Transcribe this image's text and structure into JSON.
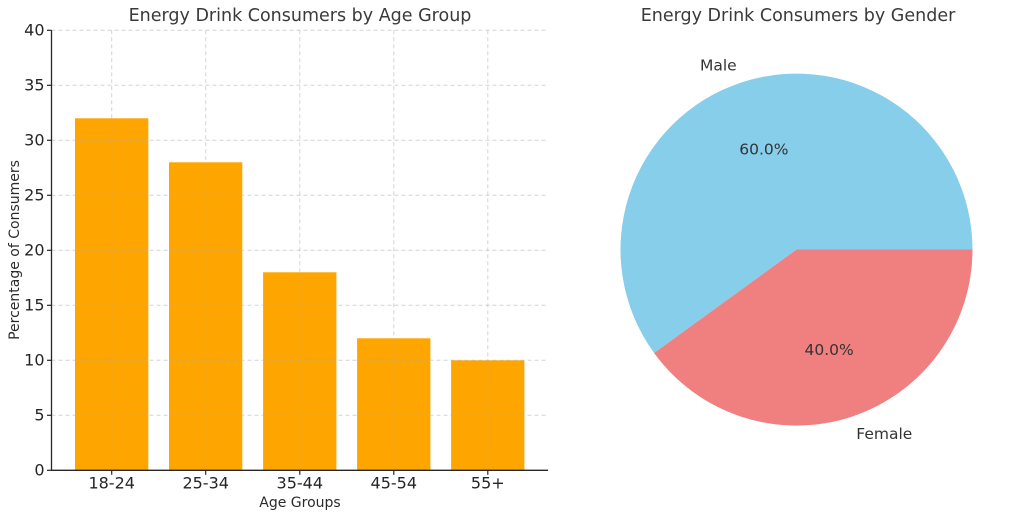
{
  "figure": {
    "background": "#ffffff",
    "text_color": "#3a3a3a"
  },
  "chart_data": [
    {
      "type": "bar",
      "title": "Energy Drink Consumers by Age Group",
      "xlabel": "Age Groups",
      "ylabel": "Percentage of Consumers",
      "categories": [
        "18-24",
        "25-34",
        "35-44",
        "45-54",
        "55+"
      ],
      "values": [
        32,
        28,
        18,
        12,
        10
      ],
      "ylim": [
        0,
        40
      ],
      "yticks": [
        0,
        5,
        10,
        15,
        20,
        25,
        30,
        35,
        40
      ],
      "bar_color": "#FFA500",
      "grid": {
        "visible": true,
        "style": "dashed",
        "color": "#b0b0b0"
      },
      "legend": "none"
    },
    {
      "type": "pie",
      "title": "Energy Drink Consumers by Gender",
      "labels": [
        "Male",
        "Female"
      ],
      "values": [
        60.0,
        40.0
      ],
      "pct_labels": [
        "60.0%",
        "40.0%"
      ],
      "colors": [
        "#87CEEB",
        "#F08080"
      ],
      "start_angle": 0,
      "direction": "counterclockwise",
      "legend": "none"
    }
  ]
}
